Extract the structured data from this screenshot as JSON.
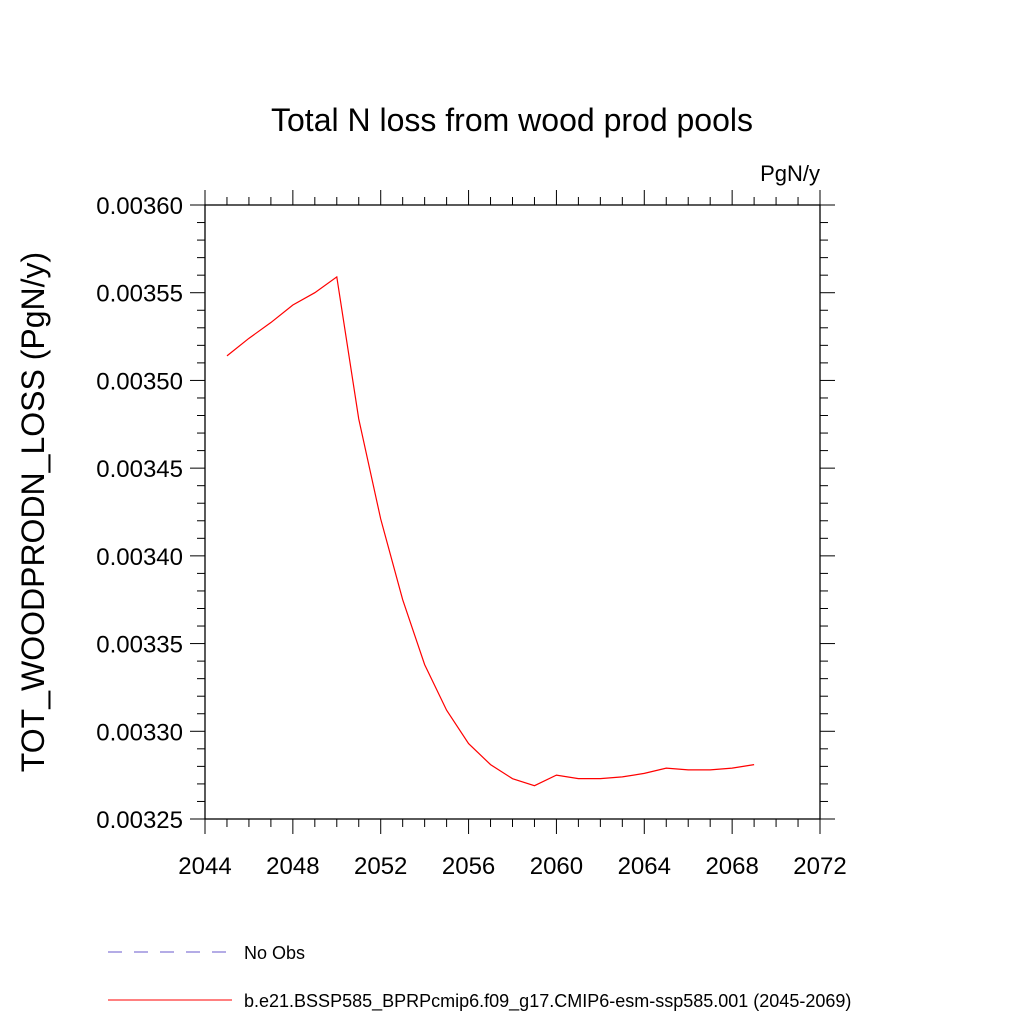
{
  "chart_data": {
    "type": "line",
    "title": "Total N loss from wood prod pools",
    "units_label": "PgN/y",
    "ylabel": "TOT_WOODPRODN_LOSS  (PgN/y)",
    "xlabel": "",
    "xlim": [
      2044,
      2072
    ],
    "ylim": [
      0.00325,
      0.0036
    ],
    "x_ticks": [
      "2044",
      "2048",
      "2052",
      "2056",
      "2060",
      "2064",
      "2068",
      "2072"
    ],
    "y_ticks": [
      "0.00325",
      "0.00330",
      "0.00335",
      "0.00340",
      "0.00345",
      "0.00350",
      "0.00355",
      "0.00360"
    ],
    "grid": false,
    "legend_position": "bottom",
    "series": [
      {
        "name": "No Obs",
        "color": "#6a5acd",
        "style": "dashed",
        "x": [],
        "y": []
      },
      {
        "name": "b.e21.BSSP585_BPRPcmip6.f09_g17.CMIP6-esm-ssp585.001 (2045-2069)",
        "color": "#ff0000",
        "style": "solid",
        "x": [
          2045,
          2046,
          2047,
          2048,
          2049,
          2050,
          2051,
          2052,
          2053,
          2054,
          2055,
          2056,
          2057,
          2058,
          2059,
          2060,
          2061,
          2062,
          2063,
          2064,
          2065,
          2066,
          2067,
          2068,
          2069
        ],
        "y": [
          0.003514,
          0.003524,
          0.003533,
          0.003543,
          0.00355,
          0.003559,
          0.003478,
          0.003421,
          0.003375,
          0.003338,
          0.003312,
          0.003293,
          0.003281,
          0.003273,
          0.003269,
          0.003275,
          0.003273,
          0.003273,
          0.003274,
          0.003276,
          0.003279,
          0.003278,
          0.003278,
          0.003279,
          0.003281
        ]
      }
    ]
  }
}
